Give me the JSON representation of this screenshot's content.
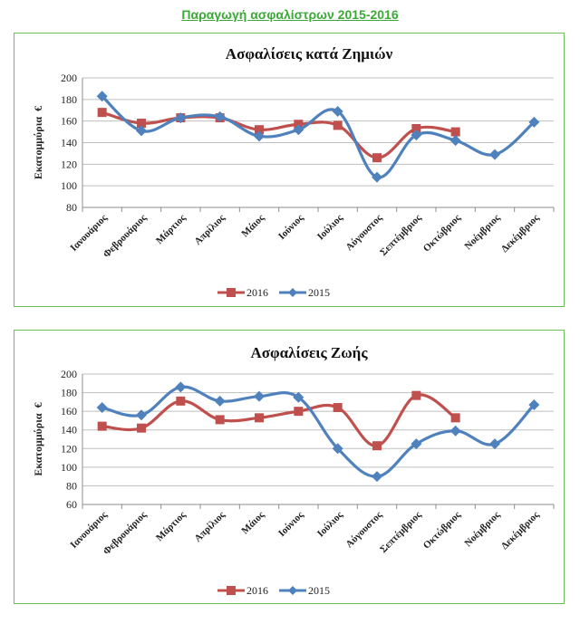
{
  "page": {
    "title": "Παραγωγή ασφαλίστρων 2015-2016"
  },
  "colors": {
    "series_2016": "#c0504d",
    "series_2015": "#4f81bd",
    "frame_border": "#6dbf57",
    "title_green": "#3aaa35",
    "gridline": "#bfbfbf"
  },
  "chart_data": [
    {
      "type": "line",
      "title": "Ασφαλίσεις κατά Ζημιών",
      "xlabel": "",
      "ylabel": "Εκατομμύρια  €",
      "ylim": [
        80,
        200
      ],
      "yticks": [
        80,
        100,
        120,
        140,
        160,
        180,
        200
      ],
      "grid": true,
      "legend": "bottom",
      "smooth": true,
      "categories": [
        "Ιανουάριος",
        "Φεβρουάριος",
        "Μάρτιος",
        "Απρίλιος",
        "Μάιος",
        "Ιούνιος",
        "Ιούλιος",
        "Αύγουστος",
        "Σεπτέμβριος",
        "Οκτώβριος",
        "Νοέμβριος",
        "Δεκέμβριος"
      ],
      "series": [
        {
          "name": "2016",
          "color": "#c0504d",
          "marker": "square",
          "values": [
            168,
            158,
            163,
            163,
            152,
            157,
            156,
            126,
            153,
            150,
            null,
            null
          ]
        },
        {
          "name": "2015",
          "color": "#4f81bd",
          "marker": "diamond",
          "values": [
            183,
            151,
            163,
            164,
            146,
            152,
            169,
            108,
            147,
            142,
            129,
            159
          ]
        }
      ]
    },
    {
      "type": "line",
      "title": "Ασφαλίσεις Ζωής",
      "xlabel": "",
      "ylabel": "Εκατομμύρια  €",
      "ylim": [
        60,
        200
      ],
      "yticks": [
        60,
        80,
        100,
        120,
        140,
        160,
        180,
        200
      ],
      "grid": true,
      "legend": "bottom",
      "smooth": true,
      "categories": [
        "Ιανουάριος",
        "Φεβρουάριος",
        "Μάρτιος",
        "Απρίλιος",
        "Μάιος",
        "Ιούνιος",
        "Ιούλιος",
        "Αύγουστος",
        "Σεπτέμβριος",
        "Οκτώβριος",
        "Νοέμβριος",
        "Δεκέμβριος"
      ],
      "series": [
        {
          "name": "2016",
          "color": "#c0504d",
          "marker": "square",
          "values": [
            144,
            142,
            171,
            151,
            153,
            160,
            164,
            123,
            177,
            153,
            null,
            null
          ]
        },
        {
          "name": "2015",
          "color": "#4f81bd",
          "marker": "diamond",
          "values": [
            164,
            156,
            186,
            171,
            176,
            175,
            120,
            90,
            125,
            139,
            125,
            167
          ]
        }
      ]
    }
  ]
}
